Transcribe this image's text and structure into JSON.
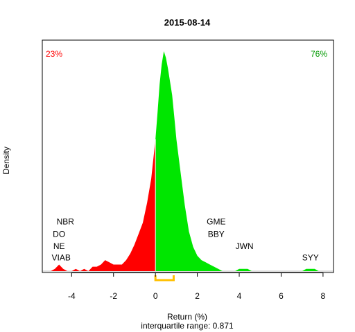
{
  "chart_data": {
    "type": "area",
    "title": "2015-08-14",
    "xlabel": "Return (%)",
    "ylabel": "Density",
    "subtitle": "interquartile range: 0.871",
    "xlim": [
      -5.4,
      8.5
    ],
    "ylim": [
      0,
      1.05
    ],
    "x_ticks": [
      -4,
      -2,
      0,
      2,
      4,
      6,
      8
    ],
    "x_tick_labels": [
      "-4",
      "-2",
      "0",
      "2",
      "4",
      "6",
      "8"
    ],
    "split_x": 0,
    "percent_negative": "23%",
    "percent_positive": "76%",
    "negative_color": "#ff0000",
    "positive_color": "#00e600",
    "iqr_color": "#ffc000",
    "iqr_range": [
      0.0,
      0.871
    ],
    "density": {
      "x": [
        -5.0,
        -4.8,
        -4.6,
        -4.4,
        -4.2,
        -4.0,
        -3.8,
        -3.6,
        -3.4,
        -3.2,
        -3.0,
        -2.8,
        -2.6,
        -2.4,
        -2.2,
        -2.0,
        -1.8,
        -1.6,
        -1.4,
        -1.2,
        -1.0,
        -0.8,
        -0.6,
        -0.4,
        -0.2,
        0.0,
        0.1,
        0.2,
        0.3,
        0.4,
        0.5,
        0.6,
        0.7,
        0.8,
        0.9,
        1.0,
        1.2,
        1.4,
        1.6,
        1.8,
        2.0,
        2.2,
        2.4,
        2.6,
        2.8,
        3.0,
        3.2,
        3.4,
        3.6,
        3.8,
        4.0,
        4.2,
        4.4,
        4.6,
        5.0,
        5.5,
        6.0,
        6.5,
        7.0,
        7.2,
        7.4,
        7.6,
        7.8,
        8.0
      ],
      "y": [
        0.0,
        0.01,
        0.03,
        0.01,
        0.0,
        0.0,
        0.01,
        0.0,
        0.01,
        0.0,
        0.02,
        0.02,
        0.03,
        0.05,
        0.04,
        0.03,
        0.03,
        0.03,
        0.05,
        0.08,
        0.12,
        0.17,
        0.22,
        0.31,
        0.42,
        0.6,
        0.72,
        0.85,
        0.94,
        1.0,
        0.97,
        0.92,
        0.86,
        0.8,
        0.7,
        0.6,
        0.45,
        0.3,
        0.18,
        0.11,
        0.07,
        0.05,
        0.04,
        0.03,
        0.02,
        0.01,
        0.0,
        0.0,
        0.0,
        0.0,
        0.01,
        0.01,
        0.01,
        0.0,
        0.0,
        0.0,
        0.0,
        0.0,
        0.0,
        0.01,
        0.01,
        0.01,
        0.0,
        0.0
      ]
    },
    "annotations": [
      {
        "label": "NBR",
        "x": -4.3,
        "y": 0.212
      },
      {
        "label": "DO",
        "x": -4.6,
        "y": 0.156
      },
      {
        "label": "NE",
        "x": -4.6,
        "y": 0.1
      },
      {
        "label": "VIAB",
        "x": -4.5,
        "y": 0.048
      },
      {
        "label": "GME",
        "x": 2.9,
        "y": 0.212
      },
      {
        "label": "BBY",
        "x": 2.9,
        "y": 0.156
      },
      {
        "label": "JWN",
        "x": 4.25,
        "y": 0.1
      },
      {
        "label": "SYY",
        "x": 7.4,
        "y": 0.048
      }
    ]
  }
}
